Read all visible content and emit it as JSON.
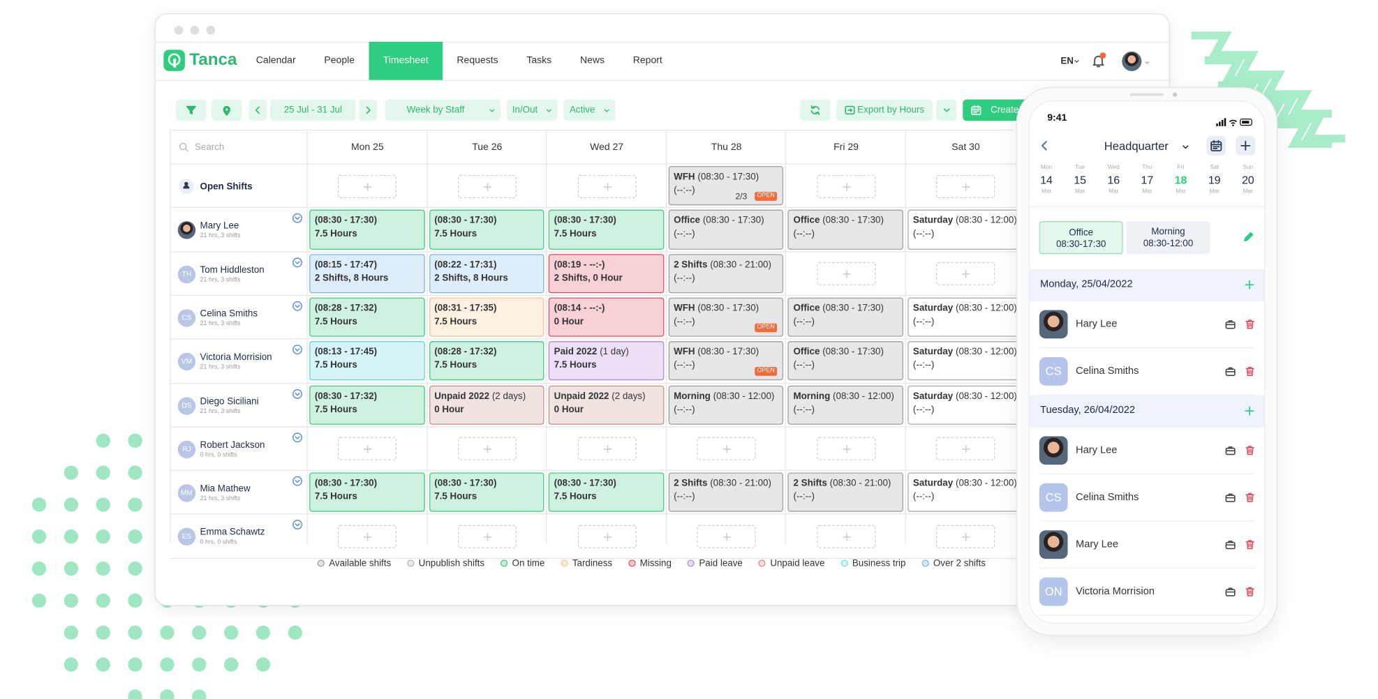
{
  "nav": {
    "logo": "Tanca",
    "items": [
      {
        "label": "Calendar"
      },
      {
        "label": "People"
      },
      {
        "label": "Timesheet",
        "active": true
      },
      {
        "label": "Requests"
      },
      {
        "label": "Tasks"
      },
      {
        "label": "News"
      },
      {
        "label": "Report"
      }
    ],
    "language": "EN"
  },
  "toolbar": {
    "date_range": "25 Jul - 31 Jul",
    "view": "Week by Staff",
    "type": "In/Out",
    "status": "Active",
    "export": "Export by Hours",
    "create": "Create"
  },
  "table": {
    "search": "Search",
    "days": [
      "Mon 25",
      "Tue 26",
      "Wed 27",
      "Thu 28",
      "Fri 29",
      "Sat 30"
    ],
    "open_shifts": {
      "label": "Open Shifts",
      "cells": [
        null,
        null,
        null,
        {
          "color": "#9e9e9e",
          "title": "WFH",
          "time": "(08:30 - 17:30)",
          "detail": "(--:--)",
          "count": "2/3",
          "badge": "OPEN"
        },
        null,
        null
      ]
    },
    "staff": [
      {
        "name": "Mary Lee",
        "summary": "21 hrs, 3 shifts",
        "cells": [
          {
            "color": "#3dcc7e",
            "time": "(08:30 - 17:30)",
            "detail": "7.5 Hours"
          },
          {
            "color": "#3dcc7e",
            "time": "(08:30 - 17:30)",
            "detail": "7.5 Hours"
          },
          {
            "color": "#3dcc7e",
            "time": "(08:30 - 17:30)",
            "detail": "7.5 Hours"
          },
          {
            "color": "#9e9e9e",
            "title": "Office",
            "time": "(08:30 - 17:30)",
            "detail": "(--:--)"
          },
          {
            "color": "#9e9e9e",
            "title": "Office",
            "time": "(08:30 - 17:30)",
            "detail": "(--:--)"
          },
          {
            "color": "#a9a9a9",
            "background": "#ffffff",
            "title": "Saturday",
            "time": "(08:30 - 12:00)",
            "detail": "(--:--)"
          }
        ]
      },
      {
        "name": "Tom Hiddleston",
        "initials": "TH",
        "summary": "21 hrs, 3 shifts",
        "cells": [
          {
            "color": "#7ab6ea",
            "time": "(08:15 - 17:47)",
            "detail": "2 Shifts, 8 Hours"
          },
          {
            "color": "#7ab6ea",
            "time": "(08:22 - 17:31)",
            "detail": "2 Shifts, 8 Hours"
          },
          {
            "color": "#e5485b",
            "time": "(08:19 - --:-)",
            "detail": "2 Shifts, 0 Hour"
          },
          {
            "color": "#9e9e9e",
            "title": "2 Shifts",
            "time": "(08:30 - 21:00)",
            "detail": "(--:--)"
          },
          null,
          null
        ]
      },
      {
        "name": "Celina Smiths",
        "initials": "CS",
        "summary": "21 hrs, 3 shifts",
        "cells": [
          {
            "color": "#3dcc7e",
            "time": "(08:28 - 17:32)",
            "detail": "7.5 Hours"
          },
          {
            "color": "#f3c58c",
            "time": "(08:31 - 17:35)",
            "detail": "7.5 Hours"
          },
          {
            "color": "#e5485b",
            "time": "(08:14 - --:-)",
            "detail": "0 Hour"
          },
          {
            "color": "#9e9e9e",
            "title": "WFH",
            "time": "(08:30 - 17:30)",
            "detail": "(--:--)",
            "badge": "OPEN"
          },
          {
            "color": "#9e9e9e",
            "title": "Office",
            "time": "(08:30 - 17:30)",
            "detail": "(--:--)"
          },
          {
            "color": "#a9a9a9",
            "background": "#ffffff",
            "title": "Saturday",
            "time": "(08:30 - 12:00)",
            "detail": "(--:--)"
          }
        ]
      },
      {
        "name": "Victoria Morrision",
        "initials": "VM",
        "summary": "21 hrs, 3 shifts",
        "cells": [
          {
            "color": "#5fd6df",
            "time": "(08:13 - 17:45)",
            "detail": "7.5 Hours"
          },
          {
            "color": "#3dcc7e",
            "time": "(08:28 - 17:32)",
            "detail": "7.5 Hours"
          },
          {
            "color": "#b583e6",
            "title": "Paid 2022",
            "time": "(1 day)",
            "detail": "7.5 Hours"
          },
          {
            "color": "#9e9e9e",
            "title": "WFH",
            "time": "(08:30 - 17:30)",
            "detail": "(--:--)",
            "badge": "OPEN"
          },
          {
            "color": "#9e9e9e",
            "title": "Office",
            "time": "(08:30 - 17:30)",
            "detail": "(--:--)"
          },
          {
            "color": "#a9a9a9",
            "background": "#ffffff",
            "title": "Saturday",
            "time": "(08:30 - 12:00)",
            "detail": "(--:--)"
          }
        ]
      },
      {
        "name": "Diego Siciliani",
        "initials": "DS",
        "summary": "21 hrs, 3 shifts",
        "cells": [
          {
            "color": "#3dcc7e",
            "time": "(08:30 - 17:32)",
            "detail": "7.5 Hours"
          },
          {
            "color": "#c98e84",
            "title": "Unpaid 2022",
            "time": "(2 days)",
            "detail": "0 Hour"
          },
          {
            "color": "#c98e84",
            "title": "Unpaid 2022",
            "time": "(2 days)",
            "detail": "0 Hour"
          },
          {
            "color": "#9e9e9e",
            "title": "Morning",
            "time": "(08:30 - 12:00)",
            "detail": "(--:--)"
          },
          {
            "color": "#9e9e9e",
            "title": "Morning",
            "time": "(08:30 - 12:00)",
            "detail": "(--:--)"
          },
          {
            "color": "#a9a9a9",
            "background": "#ffffff",
            "title": "Saturday",
            "time": "(08:30 - 12:00)",
            "detail": "(--:--)"
          }
        ]
      },
      {
        "name": "Robert Jackson",
        "initials": "RJ",
        "summary": "0 hrs, 0 shifts",
        "cells": [
          null,
          null,
          null,
          null,
          null,
          null
        ]
      },
      {
        "name": "Mia Mathew",
        "initials": "MM",
        "summary": "21 hrs, 3 shifts",
        "cells": [
          {
            "color": "#3dcc7e",
            "time": "(08:30 - 17:30)",
            "detail": "7.5 Hours"
          },
          {
            "color": "#3dcc7e",
            "time": "(08:30 - 17:30)",
            "detail": "7.5 Hours"
          },
          {
            "color": "#3dcc7e",
            "time": "(08:30 - 17:30)",
            "detail": "7.5 Hours"
          },
          {
            "color": "#9e9e9e",
            "title": "2 Shifts",
            "time": "(08:30 - 21:00)",
            "detail": "(--:--)"
          },
          {
            "color": "#9e9e9e",
            "title": "2 Shifts",
            "time": "(08:30 - 21:00)",
            "detail": "(--:--)"
          },
          {
            "color": "#a9a9a9",
            "background": "#ffffff",
            "title": "Saturday",
            "time": "(08:30 - 12:00)",
            "detail": "(--:--)"
          }
        ]
      },
      {
        "name": "Emma Schawtz",
        "initials": "ES",
        "summary": "0 hrs, 0 shifts",
        "cells": [
          null,
          null,
          null,
          null,
          null,
          null
        ]
      }
    ]
  },
  "legend": [
    {
      "label": "Available shifts",
      "color": "#9e9e9e"
    },
    {
      "label": "Unpublish shifts",
      "color": "#b5b5b5"
    },
    {
      "label": "On time",
      "color": "#3dcc7e"
    },
    {
      "label": "Tardiness",
      "color": "#f3c58c"
    },
    {
      "label": "Missing",
      "color": "#e5485b"
    },
    {
      "label": "Paid leave",
      "color": "#b583e6"
    },
    {
      "label": "Unpaid leave",
      "color": "#d38e82"
    },
    {
      "label": "Business trip",
      "color": "#6fdfe8"
    },
    {
      "label": "Over 2 shifts",
      "color": "#7ab6ea"
    }
  ],
  "phone": {
    "time": "9:41",
    "location": "Headquarter",
    "dates": [
      {
        "day": "Mon",
        "date": "14",
        "month": "Mar"
      },
      {
        "day": "Tue",
        "date": "15",
        "month": "Mar"
      },
      {
        "day": "Wed",
        "date": "16",
        "month": "Mar"
      },
      {
        "day": "Thu",
        "date": "17",
        "month": "Mar"
      },
      {
        "day": "Fri",
        "date": "18",
        "month": "Mar",
        "selected": true
      },
      {
        "day": "Sat",
        "date": "19",
        "month": "Mar"
      },
      {
        "day": "Sun",
        "date": "20",
        "month": "Mar"
      }
    ],
    "shifts": [
      {
        "name": "Office",
        "time": "08:30-17:30",
        "selected": true
      },
      {
        "name": "Morning",
        "time": "08:30-12:00"
      }
    ],
    "sections": [
      {
        "date": "Monday, 25/04/2022",
        "people": [
          {
            "name": "Hary Lee"
          },
          {
            "name": "Celina Smiths",
            "initials": "CS"
          }
        ]
      },
      {
        "date": "Tuesday, 26/04/2022",
        "people": [
          {
            "name": "Hary Lee"
          },
          {
            "name": "Celina Smiths",
            "initials": "CS"
          },
          {
            "name": "Mary Lee"
          },
          {
            "name": "Victoria Morrision",
            "initials": "ON"
          }
        ]
      }
    ]
  }
}
